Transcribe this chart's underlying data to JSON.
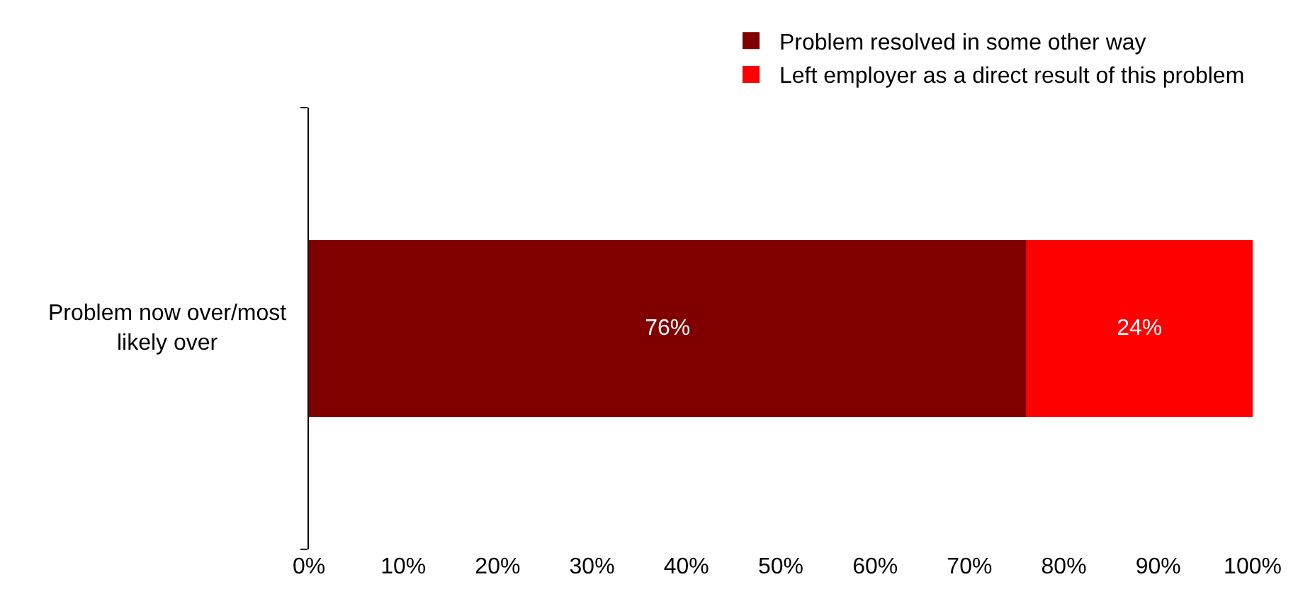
{
  "chart_data": {
    "type": "bar",
    "orientation": "horizontal",
    "stacked": true,
    "categories": [
      "Problem now over/most likely over"
    ],
    "series": [
      {
        "name": "Problem resolved in some other way",
        "color": "#800000",
        "values": [
          76
        ],
        "value_labels": [
          "76%"
        ]
      },
      {
        "name": "Left employer as a direct result of this problem",
        "color": "#ff0000",
        "values": [
          24
        ],
        "value_labels": [
          "24%"
        ]
      }
    ],
    "xlim": [
      0,
      100
    ],
    "xticks": [
      {
        "value": 0,
        "label": "0%"
      },
      {
        "value": 10,
        "label": "10%"
      },
      {
        "value": 20,
        "label": "20%"
      },
      {
        "value": 30,
        "label": "30%"
      },
      {
        "value": 40,
        "label": "40%"
      },
      {
        "value": 50,
        "label": "50%"
      },
      {
        "value": 60,
        "label": "60%"
      },
      {
        "value": 70,
        "label": "70%"
      },
      {
        "value": 80,
        "label": "80%"
      },
      {
        "value": 90,
        "label": "90%"
      },
      {
        "value": 100,
        "label": "100%"
      }
    ],
    "grid": false,
    "legend": "top"
  }
}
